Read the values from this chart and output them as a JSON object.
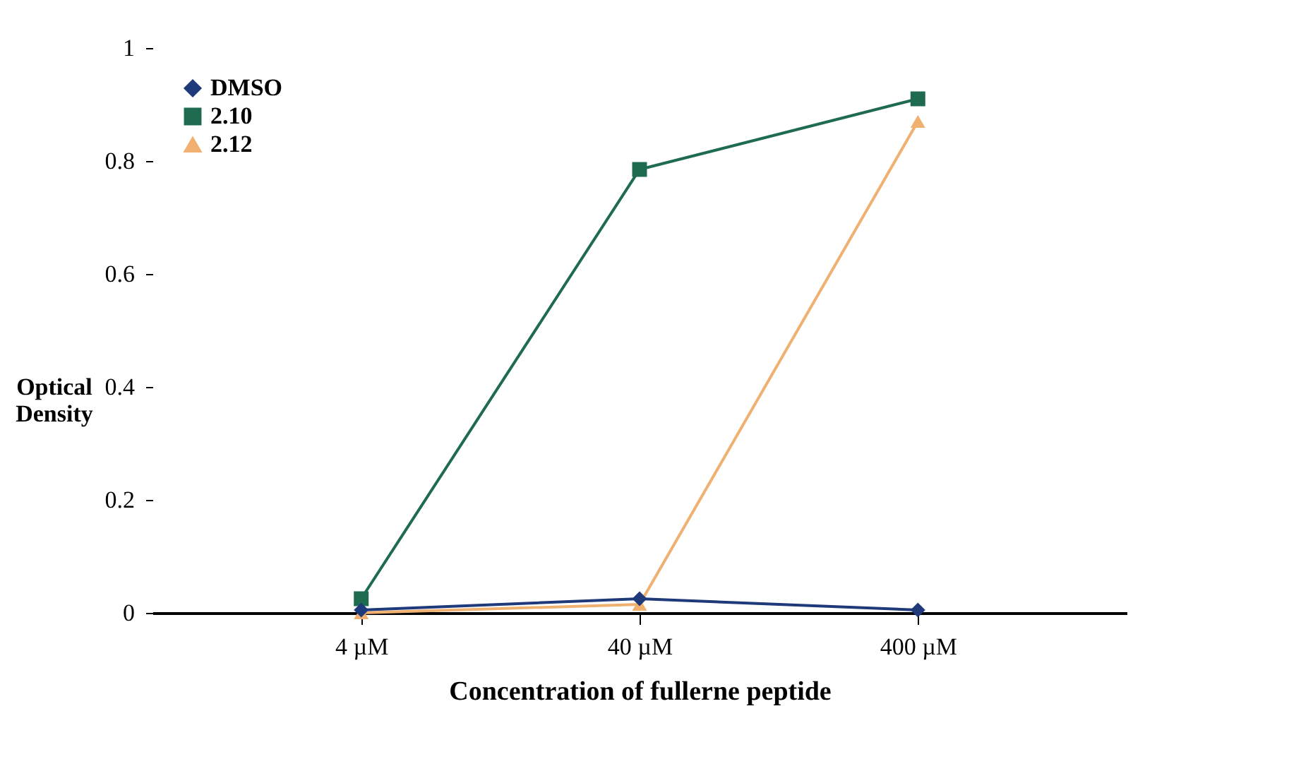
{
  "chart_data": {
    "type": "line",
    "xlabel": "Concentration of fullerne peptide",
    "ylabel": "Optical Density",
    "categories": [
      "4 µM",
      "40 µM",
      "400 µM"
    ],
    "series": [
      {
        "name": "DMSO",
        "color": "#1f3a7a",
        "marker": "diamond",
        "values": [
          0.005,
          0.025,
          0.005
        ]
      },
      {
        "name": "2.10",
        "color": "#1e6b50",
        "marker": "square",
        "values": [
          0.025,
          0.785,
          0.91
        ]
      },
      {
        "name": "2.12",
        "color": "#f0b070",
        "marker": "triangle",
        "values": [
          0.0,
          0.015,
          0.87
        ]
      }
    ],
    "ylim": [
      0,
      1
    ],
    "yticks": [
      0,
      0.2,
      0.4,
      0.6,
      0.8,
      1
    ],
    "grid": false,
    "legend": "top left"
  }
}
